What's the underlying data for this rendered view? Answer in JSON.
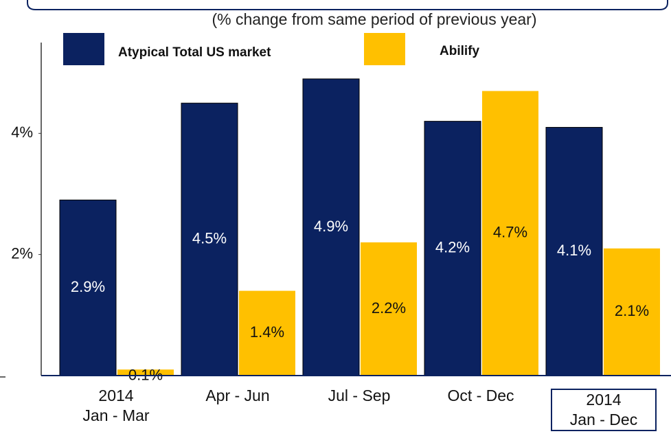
{
  "chart_data": {
    "type": "bar",
    "subtitle": "(% change from same period of previous year)",
    "categories": [
      "2014\nJan - Mar",
      "Apr - Jun",
      "Jul - Sep",
      "Oct - Dec",
      "2014\nJan - Dec"
    ],
    "series": [
      {
        "name": "Atypical Total US market",
        "color": "#0b2260",
        "values": [
          2.9,
          4.5,
          4.9,
          4.2,
          4.1
        ],
        "value_labels": [
          "2.9%",
          "4.5%",
          "4.9%",
          "4.2%",
          "4.1%"
        ]
      },
      {
        "name": "Abilify",
        "color": "#ffc000",
        "values": [
          0.1,
          1.4,
          2.2,
          4.7,
          2.1
        ],
        "value_labels": [
          "0.1%",
          "1.4%",
          "2.2%",
          "4.7%",
          "2.1%"
        ]
      }
    ],
    "ylim": [
      0,
      5.5
    ],
    "yticks": [
      {
        "value": 2,
        "label": "2%"
      },
      {
        "value": 4,
        "label": "4%"
      }
    ]
  }
}
